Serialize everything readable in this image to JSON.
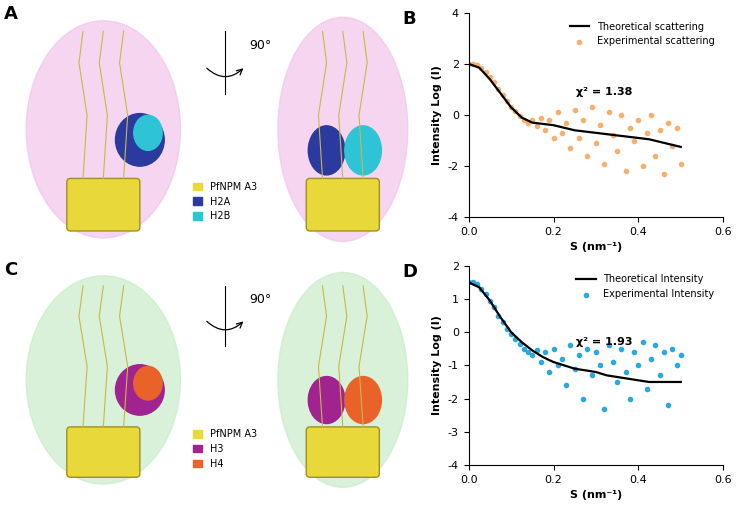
{
  "chart_data": [
    {
      "type": "scatter",
      "title": "B",
      "x_label": "S (nm⁻¹)",
      "y_label": "Intensity Log (I)",
      "annotation": "χ² = 1.38",
      "xlim": [
        0,
        0.6
      ],
      "ylim": [
        -4,
        4
      ],
      "xticks": [
        {
          "value": 0,
          "label": "0.0"
        },
        0.2,
        0.4,
        0.6
      ],
      "yticks": [
        -4,
        -2,
        0,
        2,
        4
      ],
      "legend": "upper right",
      "series": [
        {
          "name": "Theoretical scattering",
          "type": "line",
          "color": "#000000",
          "x": [
            0,
            0.025,
            0.05,
            0.075,
            0.1,
            0.125,
            0.15,
            0.175,
            0.2,
            0.225,
            0.25,
            0.275,
            0.3,
            0.325,
            0.35,
            0.375,
            0.4,
            0.425,
            0.45,
            0.475,
            0.5
          ],
          "values": [
            2.0,
            1.85,
            1.4,
            0.85,
            0.3,
            -0.1,
            -0.3,
            -0.35,
            -0.4,
            -0.5,
            -0.6,
            -0.65,
            -0.7,
            -0.75,
            -0.8,
            -0.85,
            -0.9,
            -0.95,
            -1.05,
            -1.15,
            -1.25
          ]
        },
        {
          "name": "Experimental scattering",
          "type": "scatter",
          "color": "#f5b06e",
          "x": [
            0,
            0.01,
            0.02,
            0.03,
            0.04,
            0.05,
            0.06,
            0.07,
            0.08,
            0.09,
            0.1,
            0.11,
            0.12,
            0.13,
            0.14,
            0.15,
            0.16,
            0.17,
            0.18,
            0.19,
            0.2,
            0.21,
            0.22,
            0.23,
            0.24,
            0.25,
            0.26,
            0.27,
            0.28,
            0.29,
            0.3,
            0.31,
            0.32,
            0.33,
            0.34,
            0.35,
            0.36,
            0.37,
            0.38,
            0.39,
            0.4,
            0.41,
            0.42,
            0.43,
            0.44,
            0.45,
            0.46,
            0.47,
            0.48,
            0.49,
            0.5
          ],
          "values": [
            2.0,
            2.0,
            1.95,
            1.85,
            1.7,
            1.5,
            1.3,
            1.0,
            0.8,
            0.55,
            0.3,
            0.15,
            -0.05,
            -0.2,
            -0.3,
            -0.2,
            -0.45,
            -0.1,
            -0.6,
            -0.2,
            -0.9,
            0.1,
            -0.7,
            -0.3,
            -1.3,
            0.2,
            -0.9,
            -0.2,
            -1.6,
            0.3,
            -1.1,
            -0.4,
            -1.9,
            0.1,
            -0.8,
            -1.4,
            0.0,
            -2.2,
            -0.5,
            -1.0,
            -0.2,
            -2.0,
            -0.7,
            0.0,
            -1.6,
            -0.6,
            -2.3,
            -0.3,
            -1.2,
            -0.5,
            -1.9
          ]
        }
      ]
    },
    {
      "type": "scatter",
      "title": "D",
      "x_label": "S (nm⁻¹)",
      "y_label": "Intensity Log (I)",
      "annotation": "χ² = 1.93",
      "xlim": [
        0,
        0.6
      ],
      "ylim": [
        -4,
        2
      ],
      "xticks": [
        {
          "value": 0,
          "label": "0.0"
        },
        0.2,
        0.4,
        0.6
      ],
      "yticks": [
        -4,
        -3,
        -2,
        -1,
        0,
        1,
        2
      ],
      "legend": "upper right",
      "series": [
        {
          "name": "Theoretical Intensity",
          "type": "line",
          "color": "#000000",
          "x": [
            0,
            0.025,
            0.05,
            0.075,
            0.1,
            0.125,
            0.15,
            0.175,
            0.2,
            0.225,
            0.25,
            0.275,
            0.3,
            0.325,
            0.35,
            0.375,
            0.4,
            0.425,
            0.45,
            0.475,
            0.5
          ],
          "values": [
            1.5,
            1.35,
            0.95,
            0.45,
            0.0,
            -0.3,
            -0.55,
            -0.75,
            -0.9,
            -1.0,
            -1.1,
            -1.15,
            -1.2,
            -1.3,
            -1.35,
            -1.4,
            -1.45,
            -1.5,
            -1.5,
            -1.5,
            -1.5
          ]
        },
        {
          "name": "Experimental Intensity",
          "type": "scatter",
          "color": "#2aa8e0",
          "x": [
            0,
            0.01,
            0.02,
            0.03,
            0.04,
            0.05,
            0.06,
            0.07,
            0.08,
            0.09,
            0.1,
            0.11,
            0.12,
            0.13,
            0.14,
            0.15,
            0.16,
            0.17,
            0.18,
            0.19,
            0.2,
            0.21,
            0.22,
            0.23,
            0.24,
            0.25,
            0.26,
            0.27,
            0.28,
            0.29,
            0.3,
            0.31,
            0.32,
            0.33,
            0.34,
            0.35,
            0.36,
            0.37,
            0.38,
            0.39,
            0.4,
            0.41,
            0.42,
            0.43,
            0.44,
            0.45,
            0.46,
            0.47,
            0.48,
            0.49,
            0.5
          ],
          "values": [
            1.5,
            1.5,
            1.45,
            1.3,
            1.15,
            0.95,
            0.75,
            0.5,
            0.3,
            0.1,
            -0.05,
            -0.2,
            -0.35,
            -0.5,
            -0.6,
            -0.7,
            -0.55,
            -0.9,
            -0.6,
            -1.2,
            -0.5,
            -1.0,
            -0.8,
            -1.6,
            -0.4,
            -1.1,
            -0.7,
            -2.0,
            -0.5,
            -1.3,
            -0.6,
            -1.0,
            -2.3,
            -0.4,
            -0.9,
            -1.5,
            -0.5,
            -1.2,
            -2.0,
            -0.6,
            -1.0,
            -0.3,
            -1.7,
            -0.8,
            -0.4,
            -1.3,
            -0.6,
            -2.2,
            -0.5,
            -1.0,
            -0.7
          ]
        }
      ]
    }
  ],
  "structure_panels": [
    {
      "title": "A",
      "rotation": "90°",
      "envelope_color": "#f2c4ea",
      "legend": [
        {
          "name": "PfNPM A3",
          "color": "#e8d83a"
        },
        {
          "name": "H2A",
          "color": "#2b3a9e"
        },
        {
          "name": "H2B",
          "color": "#2ec4d6"
        }
      ]
    },
    {
      "title": "C",
      "rotation": "90°",
      "envelope_color": "#c8ecc8",
      "legend": [
        {
          "name": "PfNPM A3",
          "color": "#e8d83a"
        },
        {
          "name": "H3",
          "color": "#a0238f"
        },
        {
          "name": "H4",
          "color": "#e8622a"
        }
      ]
    }
  ]
}
